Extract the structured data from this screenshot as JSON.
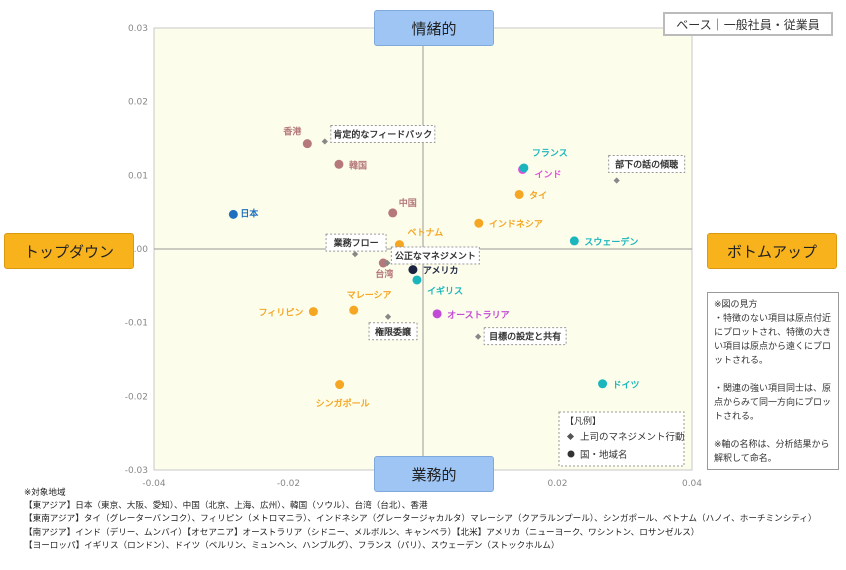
{
  "axes": {
    "top": "情緒的",
    "bottom": "業務的",
    "left": "トップダウン",
    "right": "ボトムアップ"
  },
  "base_label": "ベース｜一般社員・従業員",
  "legend": {
    "title": "【凡例】",
    "item_behavior": "上司のマネジメント行動",
    "item_country": "国・地域名"
  },
  "explanation": [
    "※図の見方",
    "・特徴のない項目は原点付近にプロットされ、特徴の大きい項目は原点から遠くにプロットされる。",
    "",
    "・関連の強い項目同士は、原点からみて同一方向にプロットされる。",
    "",
    "※軸の名称は、分析結果から解釈して命名。"
  ],
  "notes": [
    "※対象地域",
    "【東アジア】日本（東京、大阪、愛知）、中国（北京、上海、広州）、韓国（ソウル）、台湾（台北）、香港",
    "【東南アジア】タイ（グレーターバンコク）、フィリピン（メトロマニラ）、インドネシア（グレータージャカルタ）マレーシア（クアラルンプール）、シンガポール、ベトナム（ハノイ、ホーチミンシティ）",
    "【南アジア】インド（デリー、ムンバイ）【オセアニア】オーストラリア（シドニー、メルボルン、キャンベラ）【北米】アメリカ（ニューヨーク、ワシントン、ロサンゼルス）",
    "【ヨーロッパ】イギリス（ロンドン）、ドイツ（ベルリン、ミュンヘン、ハンブルグ）、フランス（パリ）、スウェーデン（ストックホルム）"
  ],
  "colors": {
    "east_asia": "#b5787b",
    "japan": "#1f6fbf",
    "southeast_asia": "#f5a623",
    "south_asia": "#e24fe0",
    "oceania": "#c24ad6",
    "north_america": "#1a2440",
    "europe": "#1bb6bd",
    "behavior": "#888888",
    "plot_bg": "#fdfdeb"
  },
  "chart_data": {
    "type": "scatter",
    "xlim": [
      -0.04,
      0.04
    ],
    "ylim": [
      -0.03,
      0.03
    ],
    "x_ticks": [
      "-0.04",
      "-0.02",
      "0",
      "0.02",
      "0.04"
    ],
    "y_ticks": [
      "0.03",
      "0.02",
      "0.01",
      "0.00",
      "-0.01",
      "-0.02",
      "-0.03"
    ],
    "countries": [
      {
        "name": "日本",
        "x": -0.0282,
        "y": 0.0047,
        "group": "japan"
      },
      {
        "name": "香港",
        "x": -0.0172,
        "y": 0.0143,
        "group": "east_asia"
      },
      {
        "name": "韓国",
        "x": -0.0125,
        "y": 0.0115,
        "group": "east_asia"
      },
      {
        "name": "中国",
        "x": -0.0045,
        "y": 0.0049,
        "group": "east_asia"
      },
      {
        "name": "台湾",
        "x": -0.0059,
        "y": -0.0019,
        "group": "east_asia"
      },
      {
        "name": "ベトナム",
        "x": -0.0035,
        "y": 0.0006,
        "group": "southeast_asia"
      },
      {
        "name": "タイ",
        "x": 0.0143,
        "y": 0.0074,
        "group": "southeast_asia"
      },
      {
        "name": "インドネシア",
        "x": 0.0083,
        "y": 0.0035,
        "group": "southeast_asia"
      },
      {
        "name": "フィリピン",
        "x": -0.0163,
        "y": -0.0085,
        "group": "southeast_asia"
      },
      {
        "name": "マレーシア",
        "x": -0.0103,
        "y": -0.0083,
        "group": "southeast_asia"
      },
      {
        "name": "シンガポール",
        "x": -0.0124,
        "y": -0.0184,
        "group": "southeast_asia"
      },
      {
        "name": "インド",
        "x": 0.0148,
        "y": 0.0108,
        "group": "south_asia"
      },
      {
        "name": "オーストラリア",
        "x": 0.0021,
        "y": -0.0088,
        "group": "oceania"
      },
      {
        "name": "アメリカ",
        "x": -0.0015,
        "y": -0.0028,
        "group": "north_america"
      },
      {
        "name": "イギリス",
        "x": -0.0009,
        "y": -0.0042,
        "group": "europe"
      },
      {
        "name": "フランス",
        "x": 0.015,
        "y": 0.011,
        "group": "europe"
      },
      {
        "name": "スウェーデン",
        "x": 0.0225,
        "y": 0.0011,
        "group": "europe"
      },
      {
        "name": "ドイツ",
        "x": 0.0267,
        "y": -0.0183,
        "group": "europe"
      }
    ],
    "behaviors": [
      {
        "name": "肯定的なフィードバック",
        "x": -0.0146,
        "y": 0.0146
      },
      {
        "name": "部下の話の傾聴",
        "x": 0.0288,
        "y": 0.0093
      },
      {
        "name": "業務フロー",
        "x": -0.0101,
        "y": -0.0007
      },
      {
        "name": "公正なマネジメント",
        "x": -0.0053,
        "y": -0.0019
      },
      {
        "name": "権限委譲",
        "x": -0.0052,
        "y": -0.0092
      },
      {
        "name": "目標の設定と共有",
        "x": 0.0082,
        "y": -0.0119
      }
    ]
  }
}
